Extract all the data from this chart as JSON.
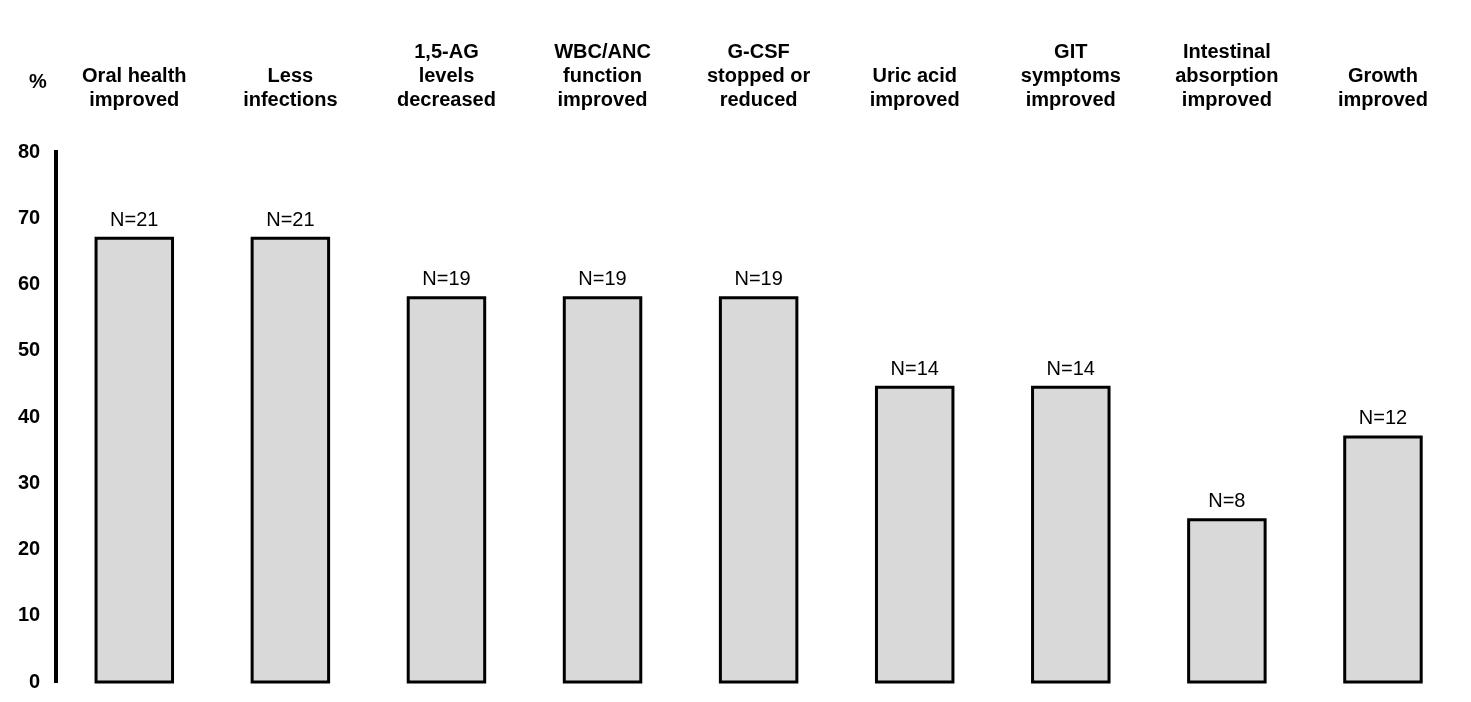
{
  "chart_data": {
    "type": "bar",
    "ylabel": "%",
    "categories": [
      "Oral health improved",
      "Less infections",
      "1,5-AG levels decreased",
      "WBC/ANC function improved",
      "G-CSF stopped or reduced",
      "Uric acid improved",
      "GIT symptoms improved",
      "Intestinal absorption improved",
      "Growth improved"
    ],
    "values": [
      67,
      67,
      58,
      58,
      58,
      44.5,
      44.5,
      24.5,
      37
    ],
    "color": "#d9d9d9",
    "annotations": [
      {
        "text": "N=21",
        "x": "Oral health improved",
        "y": 67
      },
      {
        "text": "N=21",
        "x": "Less infections",
        "y": 67
      },
      {
        "text": "N=19",
        "x": "1,5-AG levels decreased",
        "y": 58
      },
      {
        "text": "N=19",
        "x": "WBC/ANC function improved",
        "y": 58
      },
      {
        "text": "N=19",
        "x": "G-CSF stopped or reduced",
        "y": 58
      },
      {
        "text": "N=14",
        "x": "Uric acid improved",
        "y": 44.5
      },
      {
        "text": "N=14",
        "x": "GIT symptoms improved",
        "y": 44.5
      },
      {
        "text": "N=8",
        "x": "Intestinal absorption improved",
        "y": 24.5
      },
      {
        "text": "N=12",
        "x": "Growth improved",
        "y": 37
      }
    ],
    "ylim": [
      0,
      80
    ],
    "yticks": [
      0,
      10,
      20,
      30,
      40,
      50,
      60,
      70,
      80
    ],
    "grid": false,
    "legend": false
  }
}
